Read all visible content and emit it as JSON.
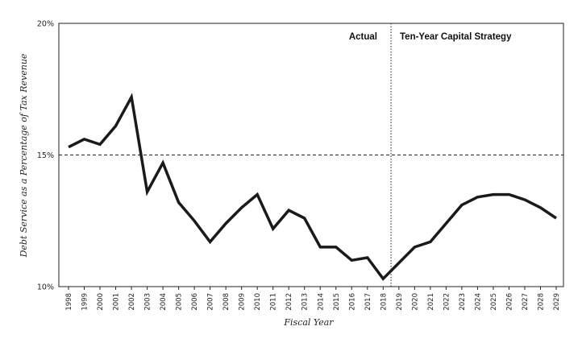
{
  "chart_data": {
    "type": "line",
    "xlabel": "Fiscal Year",
    "ylabel": "Debt Service as a Percentage of Tax Revenue",
    "ylim": [
      10,
      20
    ],
    "yticks": [
      "10%",
      "15%",
      "20%"
    ],
    "x": [
      "1998",
      "1999",
      "2000",
      "2001",
      "2002",
      "2003",
      "2004",
      "2005",
      "2006",
      "2007",
      "2008",
      "2009",
      "2010",
      "2011",
      "2012",
      "2013",
      "2014",
      "2015",
      "2016",
      "2017",
      "2018",
      "2019",
      "2020",
      "2021",
      "2022",
      "2023",
      "2024",
      "2025",
      "2026",
      "2027",
      "2028",
      "2029"
    ],
    "series": [
      {
        "values": [
          15.3,
          15.6,
          15.4,
          16.1,
          17.2,
          13.6,
          14.7,
          13.2,
          12.5,
          11.7,
          12.4,
          13.0,
          13.5,
          12.2,
          12.9,
          12.6,
          11.5,
          11.5,
          11.0,
          11.1,
          10.3,
          10.9,
          11.5,
          11.7,
          12.4,
          13.1,
          13.4,
          13.5,
          13.5,
          13.3,
          13.0,
          12.6
        ],
        "color": "#1a1a1a"
      }
    ],
    "reference_line": {
      "value": 15,
      "style": "dashed"
    },
    "divider": {
      "after_year": "2018",
      "style": "dotted"
    },
    "annotations": {
      "actual": "Actual",
      "forecast": "Ten-Year Capital Strategy"
    },
    "grid": false
  }
}
